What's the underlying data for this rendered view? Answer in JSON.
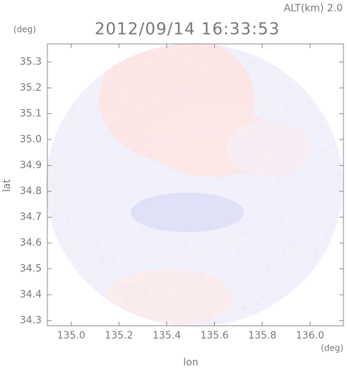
{
  "chart_data": {
    "type": "radar-field",
    "title": "2012/09/14 16:33:53",
    "subtitle": "ALT(km) 2.0",
    "xlabel": "lon",
    "ylabel": "lat",
    "xunit": "(deg)",
    "yunit": "(deg)",
    "xlim": [
      134.9,
      136.14
    ],
    "ylim": [
      34.28,
      35.37
    ],
    "xticks": [
      {
        "value": 135.0,
        "label": "135.0"
      },
      135.2,
      135.4,
      135.6,
      135.8,
      {
        "value": 136.0,
        "label": "136.0"
      }
    ],
    "yticks": [
      {
        "value": 34.3,
        "label": "34.3"
      },
      34.4,
      34.5,
      34.6,
      34.7,
      34.8,
      34.9,
      {
        "value": 35.0,
        "label": "35.0"
      },
      35.1,
      35.2,
      35.3
    ]
  }
}
